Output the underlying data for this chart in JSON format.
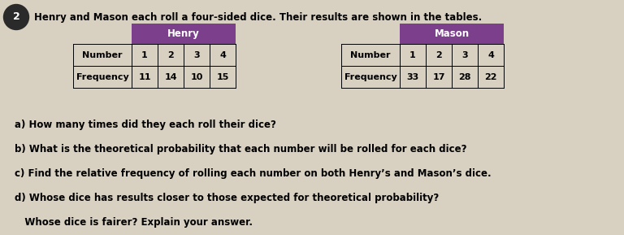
{
  "question_number": "2",
  "intro_text": "Henry and Mason each roll a four-sided dice. Their results are shown in the tables.",
  "henry_header": "Henry",
  "mason_header": "Mason",
  "row1_label": "Number",
  "row2_label": "Frequency",
  "henry_numbers": [
    "1",
    "2",
    "3",
    "4"
  ],
  "henry_freq": [
    "11",
    "14",
    "10",
    "15"
  ],
  "mason_numbers": [
    "1",
    "2",
    "3",
    "4"
  ],
  "mason_freq": [
    "33",
    "17",
    "28",
    "22"
  ],
  "header_color": "#7B3F8C",
  "header_text_color": "#FFFFFF",
  "border_color": "#555555",
  "questions": [
    "a) How many times did they each roll their dice?",
    "b) What is the theoretical probability that each number will be rolled for each dice?",
    "c) Find the relative frequency of rolling each number on both Henry’s and Mason’s dice.",
    "d) Whose dice has results closer to those expected for theoretical probability?",
    "   Whose dice is fairer? Explain your answer."
  ],
  "background_color": "#D8D0C0",
  "circle_bg": "#2A2A2A"
}
